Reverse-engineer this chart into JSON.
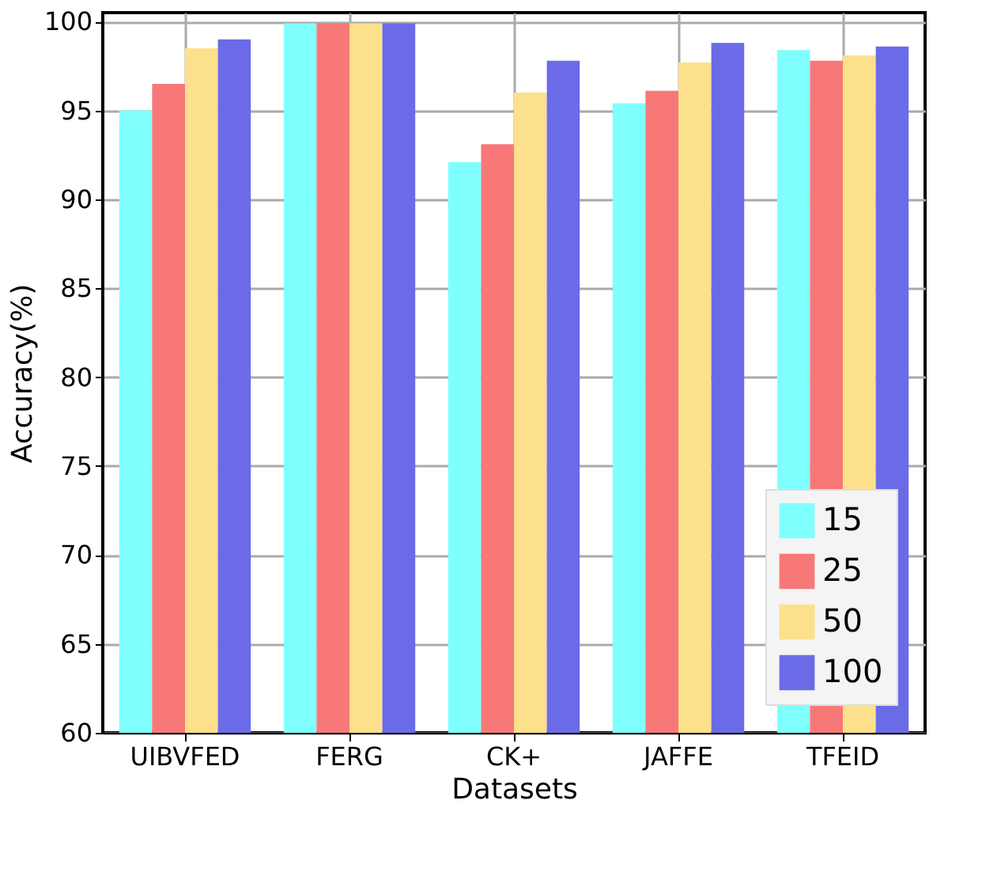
{
  "chart_data": {
    "type": "bar",
    "xlabel": "Datasets",
    "ylabel": "Accuracy(%)",
    "categories": [
      "UIBVFED",
      "FERG",
      "CK+",
      "JAFFE",
      "TFEID"
    ],
    "series": [
      {
        "name": "15",
        "color": "#80ffff",
        "values": [
          95.0,
          99.9,
          92.1,
          95.4,
          98.4
        ]
      },
      {
        "name": "25",
        "color": "#f87878",
        "values": [
          96.5,
          99.9,
          93.1,
          96.1,
          97.8
        ]
      },
      {
        "name": "50",
        "color": "#fde08c",
        "values": [
          98.5,
          99.9,
          96.0,
          97.7,
          98.1
        ]
      },
      {
        "name": "100",
        "color": "#6b6be8",
        "values": [
          99.0,
          99.9,
          97.8,
          98.8,
          98.6
        ]
      }
    ],
    "ylim": [
      60,
      100.5
    ],
    "yticks": [
      60,
      65,
      70,
      75,
      80,
      85,
      90,
      95,
      100
    ],
    "grid": true,
    "legend": "bottom right"
  }
}
